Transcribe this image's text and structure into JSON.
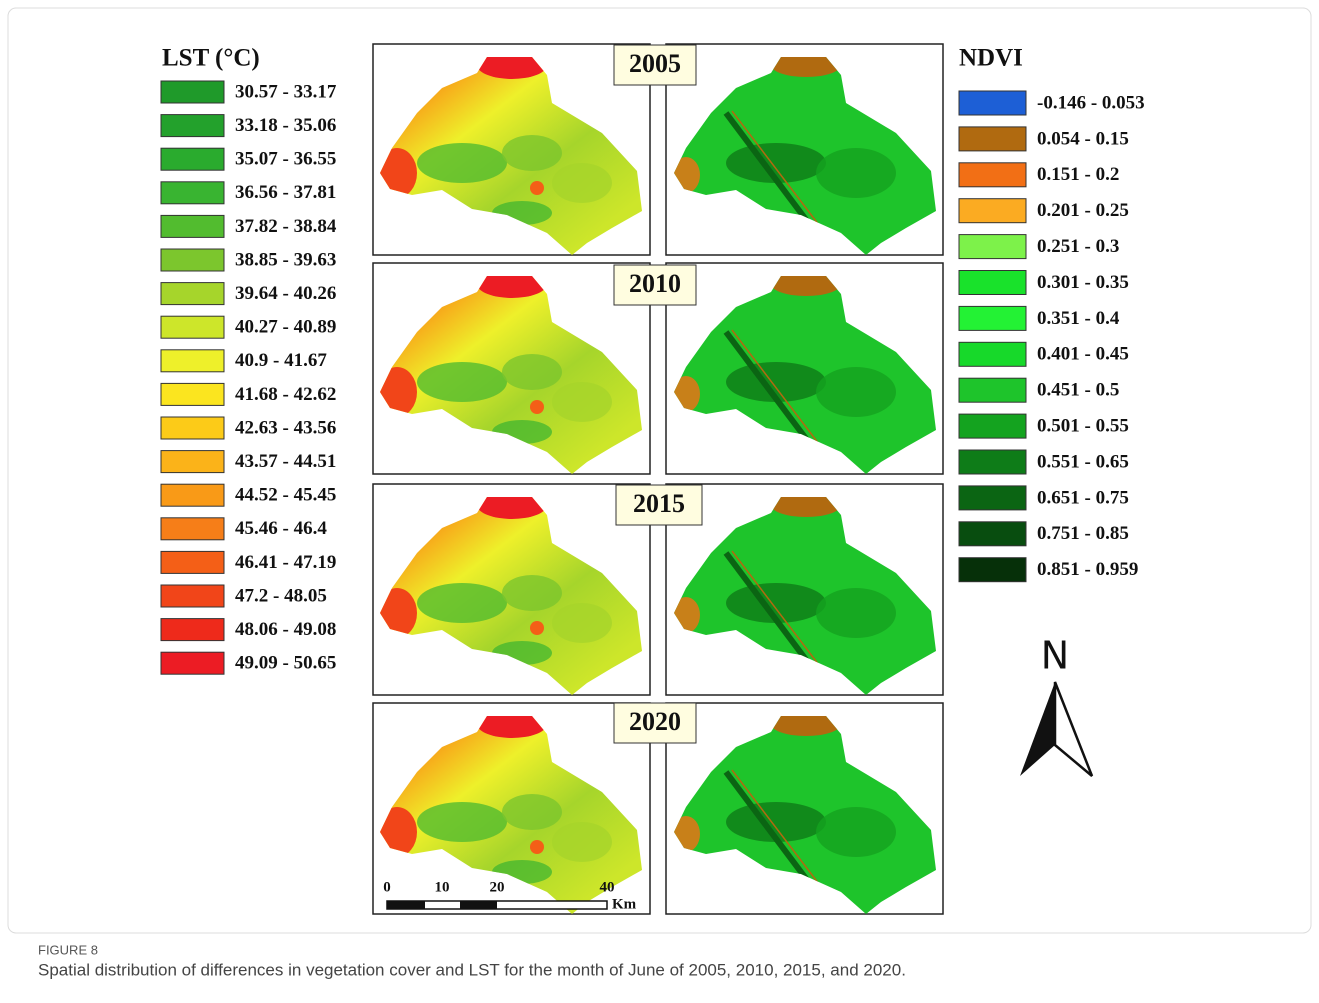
{
  "figure": {
    "lst_legend": {
      "title": "LST (°C)",
      "items": [
        {
          "label": "30.57 - 33.17",
          "color": "#1f9a2a"
        },
        {
          "label": "33.18 - 35.06",
          "color": "#23a12c"
        },
        {
          "label": "35.07 - 36.55",
          "color": "#2aab2e"
        },
        {
          "label": "36.56 - 37.81",
          "color": "#39b431"
        },
        {
          "label": "37.82 - 38.84",
          "color": "#52bc2f"
        },
        {
          "label": "38.85 - 39.63",
          "color": "#7cc62d"
        },
        {
          "label": "39.64 - 40.26",
          "color": "#a6d52b"
        },
        {
          "label": "40.27 - 40.89",
          "color": "#cde62a"
        },
        {
          "label": "40.9 - 41.67",
          "color": "#eef02a"
        },
        {
          "label": "41.68 - 42.62",
          "color": "#fbe51f"
        },
        {
          "label": "42.63 - 43.56",
          "color": "#fccb18"
        },
        {
          "label": "43.57 - 44.51",
          "color": "#fbb319"
        },
        {
          "label": "44.52 - 45.45",
          "color": "#f99a17"
        },
        {
          "label": "45.46 - 46.4",
          "color": "#f67e18"
        },
        {
          "label": "46.41 - 47.19",
          "color": "#f45f17"
        },
        {
          "label": "47.2 - 48.05",
          "color": "#f14519"
        },
        {
          "label": "48.06 - 49.08",
          "color": "#ee2a1b"
        },
        {
          "label": "49.09 - 50.65",
          "color": "#ec1c24"
        }
      ]
    },
    "ndvi_legend": {
      "title": "NDVI",
      "items": [
        {
          "label": "-0.146 - 0.053",
          "color": "#1d5fd6"
        },
        {
          "label": "0.054 - 0.15",
          "color": "#b06a10"
        },
        {
          "label": "0.151 - 0.2",
          "color": "#f26f15"
        },
        {
          "label": "0.201 - 0.25",
          "color": "#fbab22"
        },
        {
          "label": "0.251 - 0.3",
          "color": "#7df24a"
        },
        {
          "label": "0.301 - 0.35",
          "color": "#19e22b"
        },
        {
          "label": "0.351 - 0.4",
          "color": "#23f234"
        },
        {
          "label": "0.401 - 0.45",
          "color": "#17d92a"
        },
        {
          "label": "0.451 - 0.5",
          "color": "#1ec42b"
        },
        {
          "label": "0.501 - 0.55",
          "color": "#14a31f"
        },
        {
          "label": "0.551 - 0.65",
          "color": "#0e7c18"
        },
        {
          "label": "0.651 - 0.75",
          "color": "#0b6513"
        },
        {
          "label": "0.751 - 0.85",
          "color": "#084d0f"
        },
        {
          "label": "0.851 - 0.959",
          "color": "#063009"
        }
      ]
    },
    "years": [
      "2005",
      "2010",
      "2015",
      "2020"
    ],
    "scale_bar": {
      "labels": [
        "0",
        "10",
        "20",
        "40"
      ],
      "unit": "Km"
    },
    "north": "N",
    "caption": {
      "label": "FIGURE 8",
      "text": "Spatial distribution of differences in vegetation cover and LST for the month of June of 2005, 2010, 2015, and 2020."
    }
  }
}
